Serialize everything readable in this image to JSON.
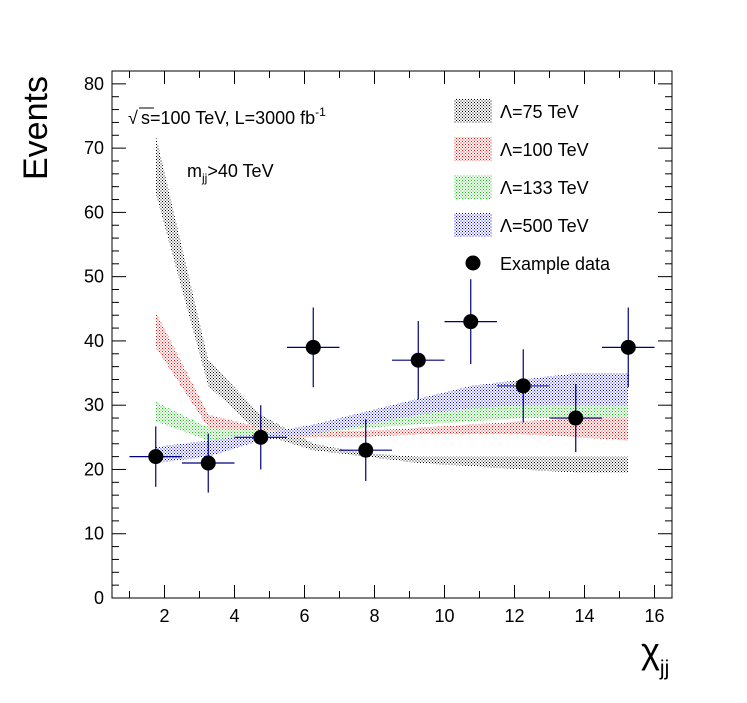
{
  "chart_data": {
    "type": "scatter",
    "xlabel": "χjj",
    "xlabel_main": "χ",
    "xlabel_sub": "jj",
    "ylabel": "Events",
    "xlim": [
      0.5,
      16.5
    ],
    "ylim": [
      0,
      82
    ],
    "x_ticks": [
      2,
      4,
      6,
      8,
      10,
      12,
      14,
      16
    ],
    "y_ticks": [
      0,
      10,
      20,
      30,
      40,
      50,
      60,
      70,
      80
    ],
    "annotations": {
      "energy_root": "√",
      "energy_s": "s",
      "energy_text": "=100 TeV, L=3000 fb",
      "energy_sup": "-1",
      "mass_m": "m",
      "mass_sub": "jj",
      "mass_text": ">40 TeV"
    },
    "legend_position": "top-right",
    "bands": [
      {
        "name": "Λ=75 TeV",
        "name_symbol": "Λ",
        "name_text": "=75 TeV",
        "color": "#000000",
        "x": [
          1.75,
          3.25,
          4.75,
          6.25,
          7.75,
          9.25,
          10.75,
          12.25,
          13.75,
          15.25
        ],
        "upper": [
          72.0,
          37.0,
          28.5,
          24.0,
          22.5,
          22.0,
          22.0,
          22.0,
          22.0,
          22.0
        ],
        "lower": [
          63.0,
          33.0,
          25.5,
          23.0,
          22.0,
          21.0,
          20.5,
          20.0,
          19.5,
          19.5
        ]
      },
      {
        "name": "Λ=100 TeV",
        "name_symbol": "Λ",
        "name_text": "=100 TeV",
        "color": "#ff0000",
        "x": [
          1.75,
          3.25,
          4.75,
          6.25,
          7.75,
          9.25,
          10.75,
          12.25,
          13.75,
          15.25
        ],
        "upper": [
          44.5,
          28.5,
          26.5,
          26.0,
          26.0,
          26.5,
          27.0,
          27.5,
          28.0,
          29.0
        ],
        "lower": [
          39.0,
          26.5,
          25.0,
          25.0,
          25.0,
          25.5,
          25.5,
          25.5,
          25.0,
          24.5
        ]
      },
      {
        "name": "Λ=133 TeV",
        "name_symbol": "Λ",
        "name_text": "=133 TeV",
        "color": "#00cc00",
        "x": [
          1.75,
          3.25,
          4.75,
          6.25,
          7.75,
          9.25,
          10.75,
          12.25,
          13.75,
          15.25
        ],
        "upper": [
          30.5,
          26.5,
          26.0,
          26.0,
          27.0,
          28.5,
          29.5,
          30.5,
          31.0,
          31.5
        ],
        "lower": [
          27.5,
          24.5,
          24.5,
          25.5,
          26.5,
          27.0,
          27.5,
          28.0,
          28.0,
          28.0
        ]
      },
      {
        "name": "Λ=500 TeV",
        "name_symbol": "Λ",
        "name_text": "=500 TeV",
        "color": "#0000ff",
        "x": [
          1.75,
          3.25,
          4.75,
          6.25,
          7.75,
          9.25,
          10.75,
          12.25,
          13.75,
          15.25
        ],
        "upper": [
          23.5,
          24.5,
          25.5,
          27.0,
          29.0,
          31.0,
          33.0,
          34.0,
          35.0,
          35.0
        ],
        "lower": [
          21.0,
          22.0,
          24.5,
          25.5,
          27.0,
          28.5,
          29.5,
          30.0,
          30.0,
          30.0
        ]
      }
    ],
    "data_points": {
      "name": "Example data",
      "x": [
        1.75,
        3.25,
        4.75,
        6.25,
        7.75,
        9.25,
        10.75,
        12.25,
        13.75,
        15.25
      ],
      "y": [
        22,
        21,
        25,
        39,
        23,
        37,
        43,
        33,
        28,
        39
      ],
      "x_err": [
        0.75,
        0.75,
        0.75,
        0.75,
        0.75,
        0.75,
        0.75,
        0.75,
        0.75,
        0.75
      ],
      "y_err": [
        4.7,
        4.6,
        5.0,
        6.2,
        4.8,
        6.1,
        6.6,
        5.7,
        5.3,
        6.2
      ],
      "color": "#000000",
      "error_color": "#000080"
    }
  }
}
